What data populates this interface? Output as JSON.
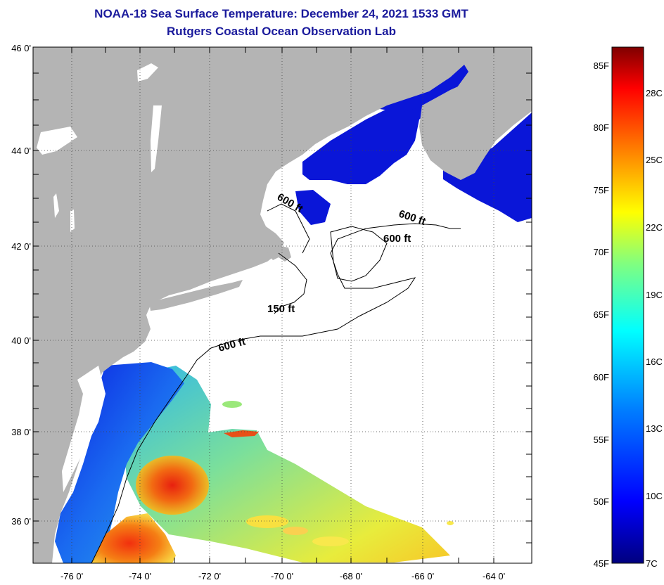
{
  "header": {
    "title": "NOAA-18 Sea Surface Temperature:  December 24, 2021 1533 GMT",
    "subtitle": "Rutgers Coastal Ocean Observation Lab"
  },
  "map": {
    "lat_labels": [
      "46 0'",
      "44 0'",
      "42 0'",
      "40 0'",
      "38 0'",
      "36 0'"
    ],
    "lon_labels": [
      "-76 0'",
      "-74 0'",
      "-72 0'",
      "-70 0'",
      "-68 0'",
      "-66 0'",
      "-64 0'"
    ],
    "contour_labels": [
      "600 ft",
      "600 ft",
      "600 ft",
      "150 ft",
      "600 ft"
    ],
    "colors": {
      "land": "#b4b4b4",
      "ocean_no_data": "#ffffff",
      "contour": "#000000"
    }
  },
  "colorbar": {
    "fahrenheit_labels": [
      "85F",
      "80F",
      "75F",
      "70F",
      "65F",
      "60F",
      "55F",
      "50F",
      "45F"
    ],
    "celsius_labels": [
      "28C",
      "25C",
      "22C",
      "19C",
      "16C",
      "13C",
      "10C",
      "7C"
    ],
    "colors": [
      "#00007f",
      "#0000ff",
      "#0080ff",
      "#00ffff",
      "#80ff80",
      "#ffff00",
      "#ff8000",
      "#ff0000",
      "#7f0000"
    ]
  }
}
